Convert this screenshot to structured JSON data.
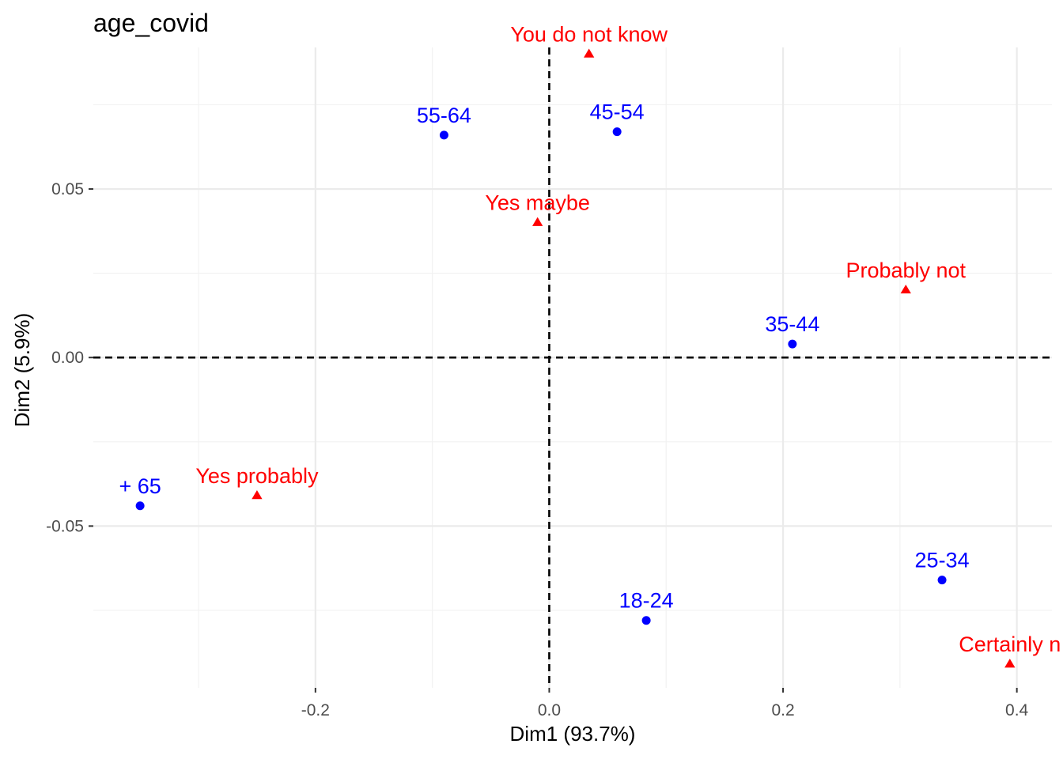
{
  "chart_data": {
    "type": "scatter",
    "title": "age_covid",
    "xlabel": "Dim1 (93.7%)",
    "ylabel": "Dim2 (5.9%)",
    "xlim": [
      -0.39,
      0.43
    ],
    "ylim": [
      -0.098,
      0.092
    ],
    "x_ticks": [
      -0.2,
      0.0,
      0.2,
      0.4
    ],
    "x_tick_labels": [
      "-0.2",
      "0.0",
      "0.2",
      "0.4"
    ],
    "y_ticks": [
      -0.05,
      0.0,
      0.05
    ],
    "y_tick_labels": [
      "-0.05",
      "0.00",
      "0.05"
    ],
    "grid": true,
    "reference_lines": {
      "x": 0,
      "y": 0,
      "style": "dashed"
    },
    "series": [
      {
        "name": "",
        "marker": "circle",
        "color": "#0000FF",
        "points": [
          {
            "label": "55-64",
            "x": -0.09,
            "y": 0.066
          },
          {
            "label": "45-54",
            "x": 0.058,
            "y": 0.067
          },
          {
            "label": "35-44",
            "x": 0.208,
            "y": 0.004
          },
          {
            "label": "+ 65",
            "x": -0.35,
            "y": -0.044
          },
          {
            "label": "25-34",
            "x": 0.336,
            "y": -0.066
          },
          {
            "label": "18-24",
            "x": 0.083,
            "y": -0.078
          }
        ]
      },
      {
        "name": "",
        "marker": "triangle",
        "color": "#FF0000",
        "points": [
          {
            "label": "You do not know",
            "x": 0.034,
            "y": 0.09
          },
          {
            "label": "Yes maybe",
            "x": -0.01,
            "y": 0.04
          },
          {
            "label": "Probably not",
            "x": 0.305,
            "y": 0.02
          },
          {
            "label": "Yes probably",
            "x": -0.25,
            "y": -0.041
          },
          {
            "label": "Certainly n",
            "x": 0.394,
            "y": -0.091
          }
        ]
      }
    ]
  }
}
